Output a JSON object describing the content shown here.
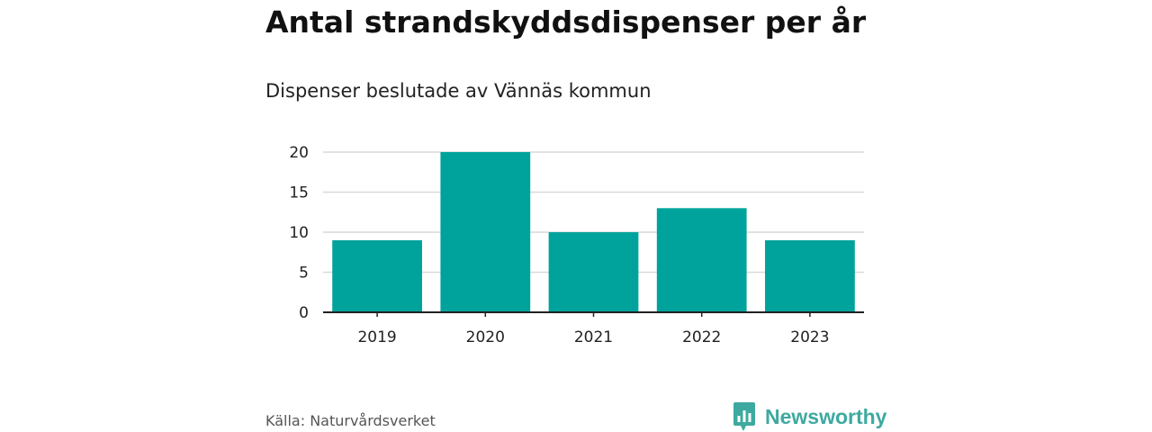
{
  "title": "Antal strandskyddsdispenser per år",
  "subtitle": "Dispenser beslutade av Vännäs kommun",
  "source": "Källa: Naturvårdsverket",
  "brand": {
    "name": "Newsworthy",
    "icon": "newsworthy-logo-icon",
    "color": "#3ea99f"
  },
  "chart_data": {
    "type": "bar",
    "title": "Antal strandskyddsdispenser per år",
    "subtitle": "Dispenser beslutade av Vännäs kommun",
    "categories": [
      "2019",
      "2020",
      "2021",
      "2022",
      "2023"
    ],
    "values": [
      9,
      20,
      10,
      13,
      9
    ],
    "xlabel": "",
    "ylabel": "",
    "ylim": [
      0,
      20
    ],
    "yticks": [
      0,
      5,
      10,
      15,
      20
    ],
    "grid": true,
    "legend": "none",
    "bar_color": "#00a39b",
    "grid_color": "#d9d9d9",
    "axis_color": "#222222"
  }
}
